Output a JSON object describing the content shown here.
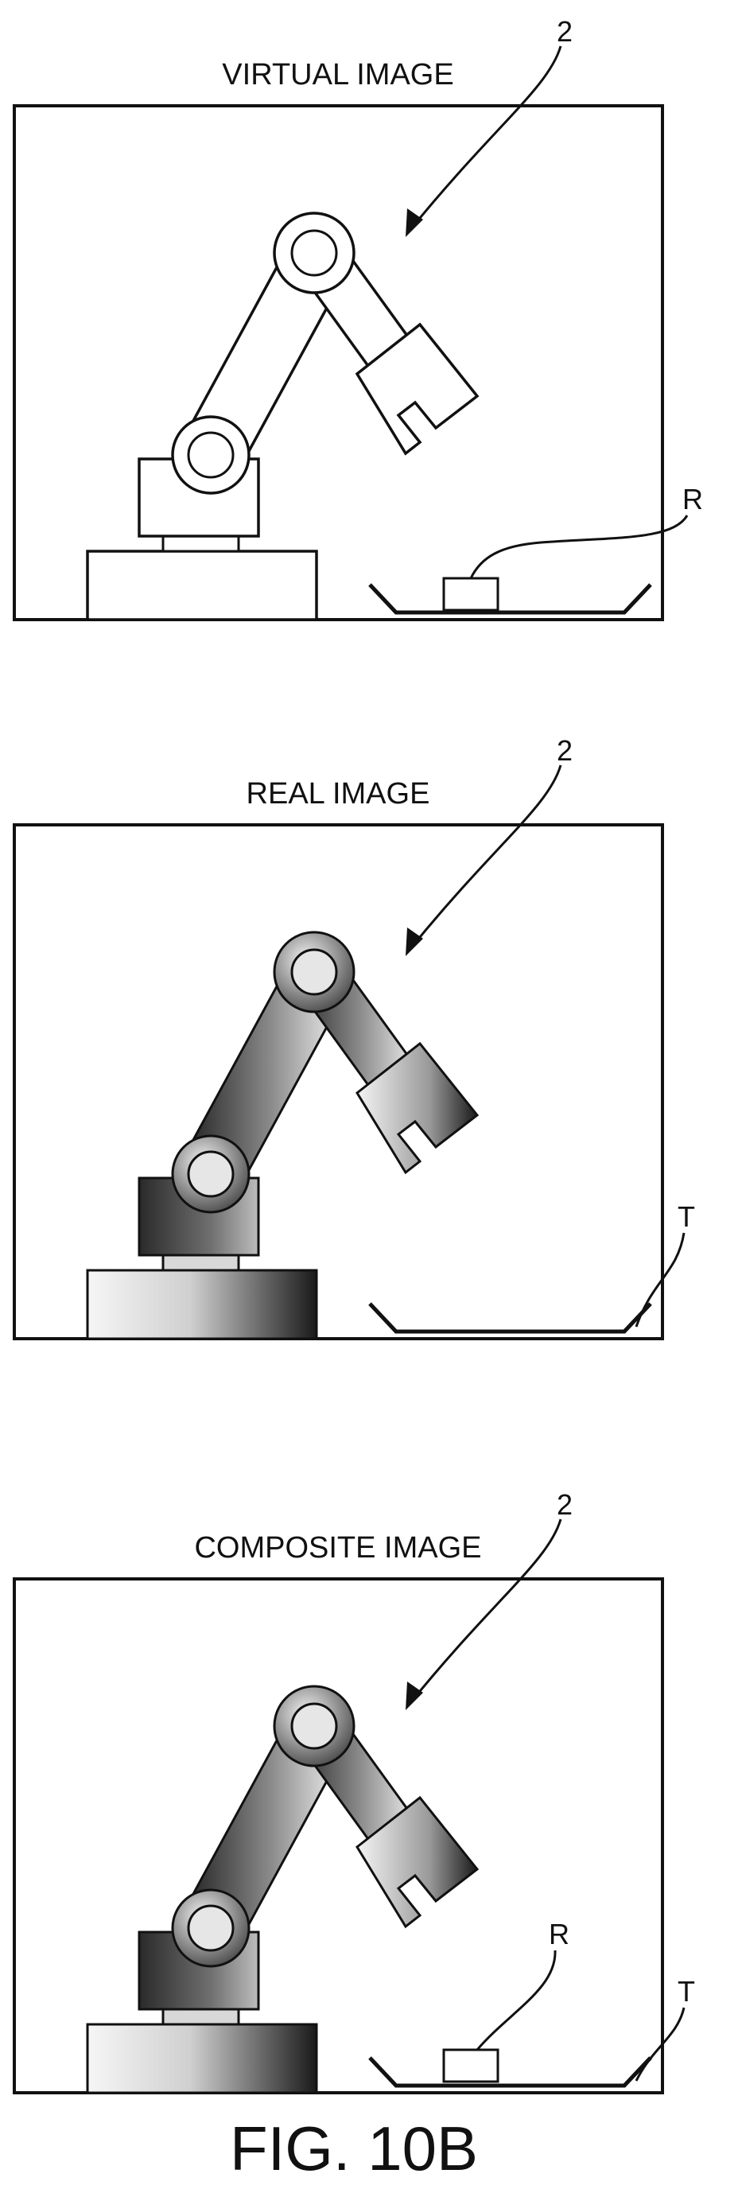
{
  "panels": [
    {
      "title": "VIRTUAL IMAGE",
      "robot_ref": "2",
      "labels": [
        "R"
      ],
      "rendering": "outline",
      "shows_workpiece": true,
      "shows_tray_label": false
    },
    {
      "title": "REAL IMAGE",
      "robot_ref": "2",
      "labels": [
        "T"
      ],
      "rendering": "shaded",
      "shows_workpiece": false,
      "shows_tray_label": true
    },
    {
      "title": "COMPOSITE IMAGE",
      "robot_ref": "2",
      "labels": [
        "R",
        "T"
      ],
      "rendering": "shaded",
      "shows_workpiece": true,
      "shows_tray_label": true
    }
  ],
  "caption": "FIG. 10B",
  "colors": {
    "line": "#111111",
    "fill": "#ffffff",
    "shade_dark": "#2a2a2a",
    "shade_light": "#f2f2f2"
  }
}
